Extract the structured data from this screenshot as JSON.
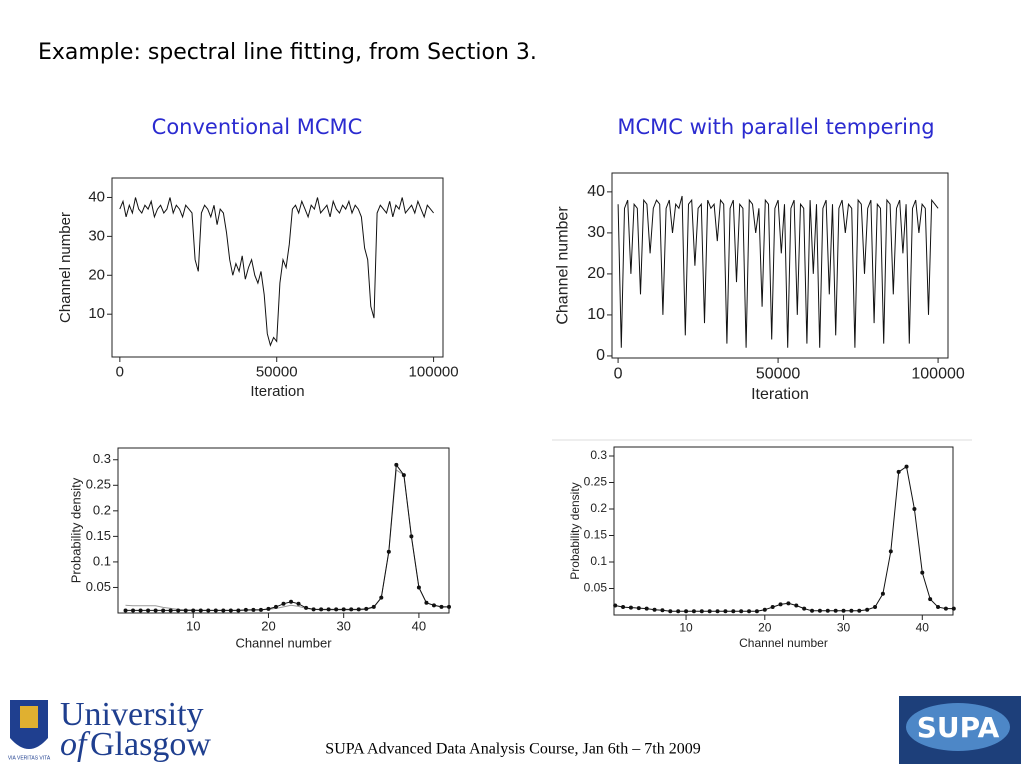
{
  "title": "Example:  spectral line fitting, from Section 3.",
  "headings": [
    "Conventional MCMC",
    "MCMC with parallel tempering"
  ],
  "footer": "SUPA Advanced Data Analysis Course, Jan 6th – 7th 2009",
  "logo": {
    "line1": "University",
    "line2a": "of",
    "line2b": "Glasgow",
    "motto": "VIA VERITAS VITA",
    "supa": "SUPA"
  },
  "chart_data": [
    {
      "type": "line",
      "x_label": "Iteration",
      "y_label": "Channel number",
      "xlim": [
        -2500,
        103000
      ],
      "ylim": [
        -1,
        45
      ],
      "xticks": [
        0,
        50000,
        100000
      ],
      "yticks": [
        10,
        20,
        30,
        40
      ],
      "x": [
        0,
        1000,
        2000,
        3000,
        4000,
        5000,
        6000,
        7000,
        8000,
        9000,
        10000,
        11000,
        12000,
        13000,
        14000,
        15000,
        16000,
        17000,
        18000,
        19000,
        20000,
        21000,
        22000,
        23000,
        24000,
        25000,
        26000,
        27000,
        28000,
        29000,
        30000,
        31000,
        32000,
        33000,
        34000,
        35000,
        36000,
        37000,
        38000,
        39000,
        40000,
        41000,
        42000,
        43000,
        44000,
        45000,
        46000,
        47000,
        48000,
        49000,
        50000,
        51000,
        52000,
        53000,
        54000,
        55000,
        56000,
        57000,
        58000,
        59000,
        60000,
        61000,
        62000,
        63000,
        64000,
        65000,
        66000,
        67000,
        68000,
        69000,
        70000,
        71000,
        72000,
        73000,
        74000,
        75000,
        76000,
        77000,
        78000,
        79000,
        80000,
        81000,
        82000,
        83000,
        84000,
        85000,
        86000,
        87000,
        88000,
        89000,
        90000,
        91000,
        92000,
        93000,
        94000,
        95000,
        96000,
        97000,
        98000,
        99000,
        100000
      ],
      "series": [
        {
          "color": "#111111",
          "values": [
            37,
            39,
            35,
            38,
            36,
            40,
            37,
            36,
            38,
            37,
            39,
            35,
            37,
            38,
            36,
            37,
            40,
            36,
            38,
            37,
            35,
            38,
            37,
            36,
            24,
            21,
            36,
            38,
            37,
            35,
            38,
            33,
            37,
            36,
            31,
            24,
            20,
            23,
            21,
            25,
            19,
            22,
            24,
            20,
            18,
            21,
            15,
            5,
            2,
            4,
            3,
            18,
            24,
            22,
            28,
            37,
            38,
            36,
            39,
            37,
            35,
            38,
            37,
            40,
            36,
            37,
            38,
            35,
            39,
            37,
            36,
            38,
            37,
            39,
            36,
            38,
            37,
            35,
            27,
            24,
            12,
            9,
            36,
            38,
            37,
            36,
            39,
            35,
            38,
            37,
            40,
            36,
            37,
            38,
            36,
            39,
            37,
            35,
            38,
            37,
            36
          ]
        }
      ]
    },
    {
      "type": "line",
      "x_label": "Iteration",
      "y_label": "Channel number",
      "xlim": [
        -1900,
        103100
      ],
      "ylim": [
        -0.5,
        44.6
      ],
      "xticks": [
        0,
        50000,
        100000
      ],
      "yticks": [
        0,
        10,
        20,
        30,
        40
      ],
      "x": [
        0,
        1000,
        2000,
        3000,
        4000,
        5000,
        6000,
        7000,
        8000,
        9000,
        10000,
        11000,
        12000,
        13000,
        14000,
        15000,
        16000,
        17000,
        18000,
        19000,
        20000,
        21000,
        22000,
        23000,
        24000,
        25000,
        26000,
        27000,
        28000,
        29000,
        30000,
        31000,
        32000,
        33000,
        34000,
        35000,
        36000,
        37000,
        38000,
        39000,
        40000,
        41000,
        42000,
        43000,
        44000,
        45000,
        46000,
        47000,
        48000,
        49000,
        50000,
        51000,
        52000,
        53000,
        54000,
        55000,
        56000,
        57000,
        58000,
        59000,
        60000,
        61000,
        62000,
        63000,
        64000,
        65000,
        66000,
        67000,
        68000,
        69000,
        70000,
        71000,
        72000,
        73000,
        74000,
        75000,
        76000,
        77000,
        78000,
        79000,
        80000,
        81000,
        82000,
        83000,
        84000,
        85000,
        86000,
        87000,
        88000,
        89000,
        90000,
        91000,
        92000,
        93000,
        94000,
        95000,
        96000,
        97000,
        98000,
        99000,
        100000
      ],
      "series": [
        {
          "color": "#111111",
          "values": [
            37,
            2,
            36,
            38,
            20,
            37,
            36,
            15,
            38,
            37,
            25,
            36,
            38,
            37,
            10,
            36,
            38,
            30,
            37,
            36,
            39,
            5,
            37,
            38,
            22,
            36,
            37,
            8,
            38,
            36,
            37,
            28,
            38,
            37,
            3,
            36,
            38,
            18,
            37,
            36,
            2,
            38,
            37,
            30,
            36,
            12,
            38,
            37,
            4,
            36,
            38,
            25,
            37,
            2,
            36,
            38,
            10,
            37,
            36,
            3,
            38,
            20,
            37,
            2,
            36,
            38,
            15,
            37,
            5,
            36,
            38,
            30,
            37,
            36,
            2,
            38,
            37,
            20,
            36,
            38,
            8,
            37,
            36,
            3,
            38,
            37,
            15,
            36,
            38,
            25,
            37,
            3,
            36,
            38,
            30,
            37,
            36,
            10,
            38,
            37,
            36
          ]
        }
      ]
    },
    {
      "type": "line",
      "x_label": "Channel number",
      "y_label": "Probability density",
      "xlim": [
        0,
        44
      ],
      "ylim": [
        0,
        0.323
      ],
      "xticks": [
        10,
        20,
        30,
        40
      ],
      "yticks": [
        0.05,
        0.1,
        0.15,
        0.2,
        0.25,
        0.3
      ],
      "x": [
        1,
        2,
        3,
        4,
        5,
        6,
        7,
        8,
        9,
        10,
        11,
        12,
        13,
        14,
        15,
        16,
        17,
        18,
        19,
        20,
        21,
        22,
        23,
        24,
        25,
        26,
        27,
        28,
        29,
        30,
        31,
        32,
        33,
        34,
        35,
        36,
        37,
        38,
        39,
        40,
        41,
        42,
        43,
        44
      ],
      "series": [
        {
          "color": "#999999",
          "values": [
            0.015,
            0.014,
            0.014,
            0.014,
            0.014,
            0.011,
            0.009,
            0.007,
            0.006,
            0.006,
            0.005,
            0.005,
            0.005,
            0.005,
            0.005,
            0.005,
            0.005,
            0.006,
            0.006,
            0.007,
            0.009,
            0.012,
            0.015,
            0.013,
            0.009,
            0.007,
            0.006,
            0.006,
            0.006,
            0.006,
            0.006,
            0.006,
            0.007,
            0.011,
            0.03,
            0.12,
            0.28,
            0.27,
            0.15,
            0.05,
            0.02,
            0.015,
            0.012,
            0.012
          ]
        },
        {
          "color": "#111111",
          "markers": true,
          "values": [
            0.005,
            0.005,
            0.005,
            0.005,
            0.005,
            0.005,
            0.005,
            0.005,
            0.005,
            0.005,
            0.005,
            0.005,
            0.005,
            0.005,
            0.005,
            0.005,
            0.006,
            0.006,
            0.006,
            0.008,
            0.012,
            0.018,
            0.022,
            0.018,
            0.01,
            0.007,
            0.007,
            0.007,
            0.007,
            0.007,
            0.007,
            0.007,
            0.008,
            0.012,
            0.03,
            0.12,
            0.29,
            0.27,
            0.15,
            0.05,
            0.02,
            0.015,
            0.012,
            0.012
          ]
        }
      ]
    },
    {
      "type": "line",
      "x_label": "Channel number",
      "y_label": "Probability density",
      "xlim": [
        0.85,
        43.9
      ],
      "ylim": [
        0,
        0.317
      ],
      "xticks": [
        10,
        20,
        30,
        40
      ],
      "yticks": [
        0.05,
        0.1,
        0.15,
        0.2,
        0.25,
        0.3
      ],
      "x": [
        1,
        2,
        3,
        4,
        5,
        6,
        7,
        8,
        9,
        10,
        11,
        12,
        13,
        14,
        15,
        16,
        17,
        18,
        19,
        20,
        21,
        22,
        23,
        24,
        25,
        26,
        27,
        28,
        29,
        30,
        31,
        32,
        33,
        34,
        35,
        36,
        37,
        38,
        39,
        40,
        41,
        42,
        43,
        44
      ],
      "series": [
        {
          "color": "#111111",
          "markers": true,
          "values": [
            0.018,
            0.015,
            0.014,
            0.013,
            0.012,
            0.01,
            0.009,
            0.007,
            0.007,
            0.007,
            0.007,
            0.007,
            0.007,
            0.007,
            0.007,
            0.007,
            0.007,
            0.007,
            0.007,
            0.01,
            0.015,
            0.02,
            0.022,
            0.018,
            0.012,
            0.008,
            0.008,
            0.008,
            0.008,
            0.008,
            0.008,
            0.008,
            0.01,
            0.015,
            0.04,
            0.12,
            0.27,
            0.28,
            0.2,
            0.08,
            0.03,
            0.015,
            0.012,
            0.012
          ]
        }
      ]
    }
  ]
}
